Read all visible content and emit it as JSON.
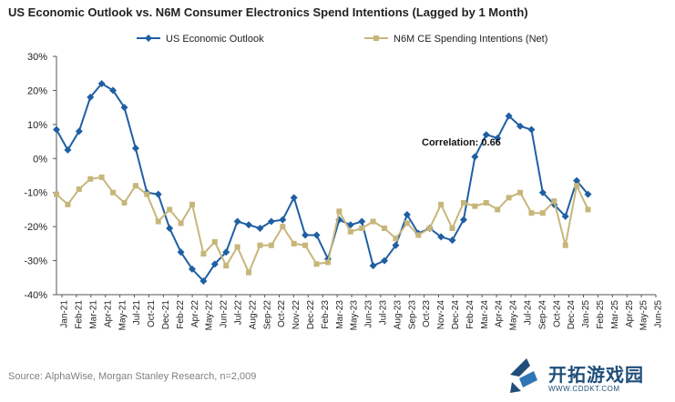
{
  "chart_data": {
    "type": "line",
    "title": "US Economic Outlook vs. N6M Consumer Electronics Spend Intentions (Lagged by 1 Month)",
    "source": "Source: AlphaWise, Morgan Stanley Research, n=2,009",
    "annotation": "Correlation: 0.66",
    "ylim": [
      -40,
      30
    ],
    "yticks": [
      "30%",
      "20%",
      "10%",
      "0%",
      "-10%",
      "-20%",
      "-30%",
      "-40%"
    ],
    "yticks_values": [
      30,
      20,
      10,
      0,
      -10,
      -20,
      -30,
      -40
    ],
    "x": [
      "Jan-21",
      "Feb-21",
      "Mar-21",
      "Apr-21",
      "May-21",
      "Jun-21",
      "Jul-21",
      "Aug-21",
      "Sep-21",
      "Oct-21",
      "Nov-21",
      "Dec-21",
      "Jan-22",
      "Feb-22",
      "Mar-22",
      "Apr-22",
      "May-22",
      "Jun-22",
      "Jul-22",
      "Aug-22",
      "Sep-22",
      "Oct-22",
      "Nov-22",
      "Dec-22",
      "Jan-23",
      "Feb-23",
      "Mar-23",
      "Apr-23",
      "May-23",
      "Jun-23",
      "Jul-23",
      "Aug-23",
      "Sep-23",
      "Oct-23",
      "Nov-23",
      "Dec-23",
      "Jan-24",
      "Feb-24",
      "Mar-24",
      "Apr-24",
      "May-24",
      "Jun-24",
      "Jul-24",
      "Aug-24",
      "Sep-24",
      "Oct-24",
      "Nov-24",
      "Dec-24",
      "Jan-25",
      "Feb-25",
      "Mar-25",
      "Apr-25",
      "May-25",
      "Jun-25"
    ],
    "xtick_labels": [
      "Jan-21",
      "Feb-21",
      "Mar-21",
      "Apr-21",
      "May-21",
      "Jul-21",
      "Oct-21",
      "Dec-21",
      "Feb-22",
      "Apr-22",
      "May-22",
      "Jun-22",
      "Jul-22",
      "Aug-22",
      "Sep-22",
      "Oct-22",
      "Nov-22",
      "Dec-22",
      "Feb-23",
      "Mar-23",
      "May-23",
      "Jun-23",
      "Jul-23",
      "Aug-23",
      "Sep-23",
      "Oct-23",
      "Nov-24",
      "Dec-24",
      "Feb-24",
      "Mar-24",
      "Apr-24",
      "May-24",
      "Jul-24",
      "Sep-24",
      "Oct-24",
      "Dec-24",
      "Jan-25",
      "Feb-25",
      "Mar-25",
      "Apr-25",
      "May-25",
      "Jun-25"
    ],
    "series": [
      {
        "name": "US Economic Outlook",
        "color": "#1f5fa3",
        "marker": "diamond",
        "values": [
          8.5,
          2.5,
          8,
          18,
          22,
          20,
          15,
          3,
          -10,
          -10.5,
          -20.5,
          -27.5,
          -32.5,
          -36,
          -31,
          -27.5,
          -18.5,
          -19.5,
          -20.5,
          -18.5,
          -18,
          -11.5,
          -22.5,
          -22.5,
          -29.5,
          -18,
          -19.5,
          -18.5,
          -31.5,
          -30,
          -25.5,
          -16.5,
          -22,
          -20.5,
          -23,
          -24,
          -18,
          0.5,
          7,
          6,
          12.5,
          9.5,
          8.5,
          -10,
          -13.5,
          -17,
          -6.5,
          -10.5,
          null,
          null,
          null,
          null,
          null,
          null
        ]
      },
      {
        "name": "N6M CE Spending Intentions (Net)",
        "color": "#c7b67a",
        "marker": "square",
        "values": [
          -10.5,
          -13.5,
          -9,
          -6,
          -5.5,
          -10,
          -13,
          -8,
          -10.5,
          -18.5,
          -15,
          -19,
          -13.5,
          -28,
          -24.5,
          -31.5,
          -26,
          -33.5,
          -25.5,
          -25.5,
          -20,
          -25,
          -25.5,
          -31,
          -30.5,
          -15.5,
          -21.5,
          -20.5,
          -18.5,
          -20.5,
          -23.5,
          -19,
          -22.5,
          -20.5,
          -13.5,
          -20.5,
          -13,
          -14,
          -13,
          -15,
          -11.5,
          -10,
          -16,
          -16,
          -12.5,
          -25.5,
          -8,
          -15,
          null,
          null,
          null,
          null,
          null,
          null
        ]
      }
    ],
    "legend": "top-left",
    "grid": false
  },
  "logo": {
    "main": "开拓游戏园",
    "sub": "WWW.CDDKT.COM"
  }
}
